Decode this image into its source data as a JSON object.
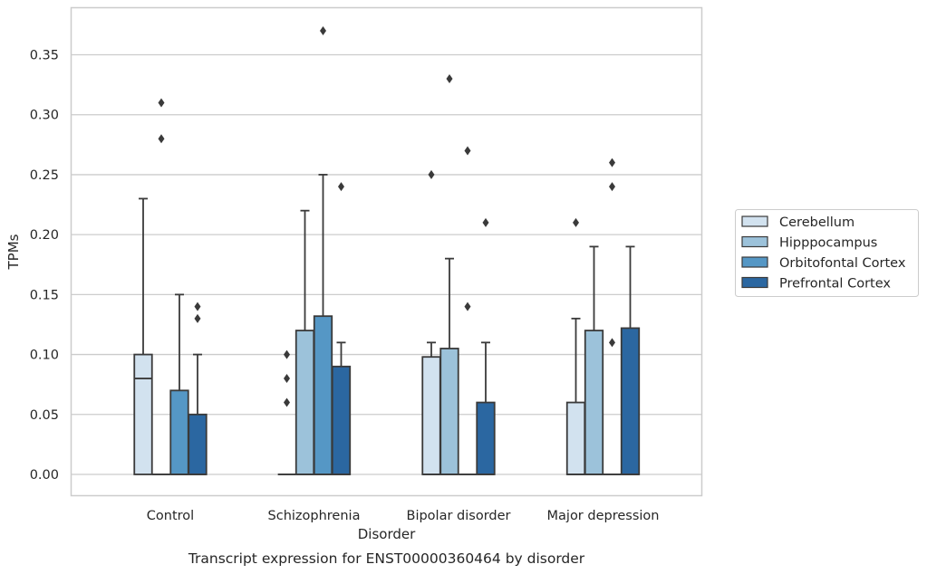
{
  "chart_data": {
    "type": "boxplot",
    "caption": "Transcript expression for ENST00000360464 by disorder",
    "xlabel": "Disorder",
    "ylabel": "TPMs",
    "ylim": [
      -0.018,
      0.388
    ],
    "yticks": [
      "0.00",
      "0.05",
      "0.10",
      "0.15",
      "0.20",
      "0.25",
      "0.30",
      "0.35"
    ],
    "grid": true,
    "legend_position": "right",
    "categories": [
      "Control",
      "Schizophrenia",
      "Bipolar disorder",
      "Major depression"
    ],
    "series": [
      {
        "name": "Cerebellum",
        "color": "#d2e2ef",
        "boxes": [
          {
            "q1": 0,
            "median": 0.08,
            "q3": 0.1,
            "whisker_low": 0,
            "whisker_high": 0.23,
            "outliers": []
          },
          {
            "q1": 0,
            "median": 0,
            "q3": 0,
            "whisker_low": 0,
            "whisker_high": 0,
            "outliers": [
              0.06,
              0.08,
              0.1
            ]
          },
          {
            "q1": 0,
            "median": 0,
            "q3": 0.098,
            "whisker_low": 0,
            "whisker_high": 0.11,
            "outliers": [
              0.25
            ]
          },
          {
            "q1": 0,
            "median": 0,
            "q3": 0.06,
            "whisker_low": 0,
            "whisker_high": 0.13,
            "outliers": [
              0.21
            ]
          }
        ]
      },
      {
        "name": "Hipppocampus",
        "color": "#9cc2da",
        "boxes": [
          {
            "q1": 0,
            "median": 0,
            "q3": 0,
            "whisker_low": 0,
            "whisker_high": 0,
            "outliers": [
              0.28,
              0.31
            ]
          },
          {
            "q1": 0,
            "median": 0,
            "q3": 0.12,
            "whisker_low": 0,
            "whisker_high": 0.22,
            "outliers": []
          },
          {
            "q1": 0,
            "median": 0,
            "q3": 0.105,
            "whisker_low": 0,
            "whisker_high": 0.18,
            "outliers": [
              0.33
            ]
          },
          {
            "q1": 0,
            "median": 0,
            "q3": 0.12,
            "whisker_low": 0,
            "whisker_high": 0.19,
            "outliers": []
          }
        ]
      },
      {
        "name": "Orbitofontal Cortex",
        "color": "#5597c5",
        "boxes": [
          {
            "q1": 0,
            "median": 0,
            "q3": 0.07,
            "whisker_low": 0,
            "whisker_high": 0.15,
            "outliers": []
          },
          {
            "q1": 0,
            "median": 0,
            "q3": 0.132,
            "whisker_low": 0,
            "whisker_high": 0.25,
            "outliers": [
              0.37
            ]
          },
          {
            "q1": 0,
            "median": 0,
            "q3": 0,
            "whisker_low": 0,
            "whisker_high": 0,
            "outliers": [
              0.14,
              0.27
            ]
          },
          {
            "q1": 0,
            "median": 0,
            "q3": 0,
            "whisker_low": 0,
            "whisker_high": 0,
            "outliers": [
              0.11,
              0.24,
              0.26
            ]
          }
        ]
      },
      {
        "name": "Prefrontal Cortex",
        "color": "#2b67a1",
        "boxes": [
          {
            "q1": 0,
            "median": 0,
            "q3": 0.05,
            "whisker_low": 0,
            "whisker_high": 0.1,
            "outliers": [
              0.13,
              0.14
            ]
          },
          {
            "q1": 0,
            "median": 0,
            "q3": 0.09,
            "whisker_low": 0,
            "whisker_high": 0.11,
            "outliers": [
              0.24
            ]
          },
          {
            "q1": 0,
            "median": 0,
            "q3": 0.06,
            "whisker_low": 0,
            "whisker_high": 0.11,
            "outliers": [
              0.21
            ]
          },
          {
            "q1": 0,
            "median": 0,
            "q3": 0.122,
            "whisker_low": 0,
            "whisker_high": 0.19,
            "outliers": []
          }
        ]
      }
    ]
  }
}
